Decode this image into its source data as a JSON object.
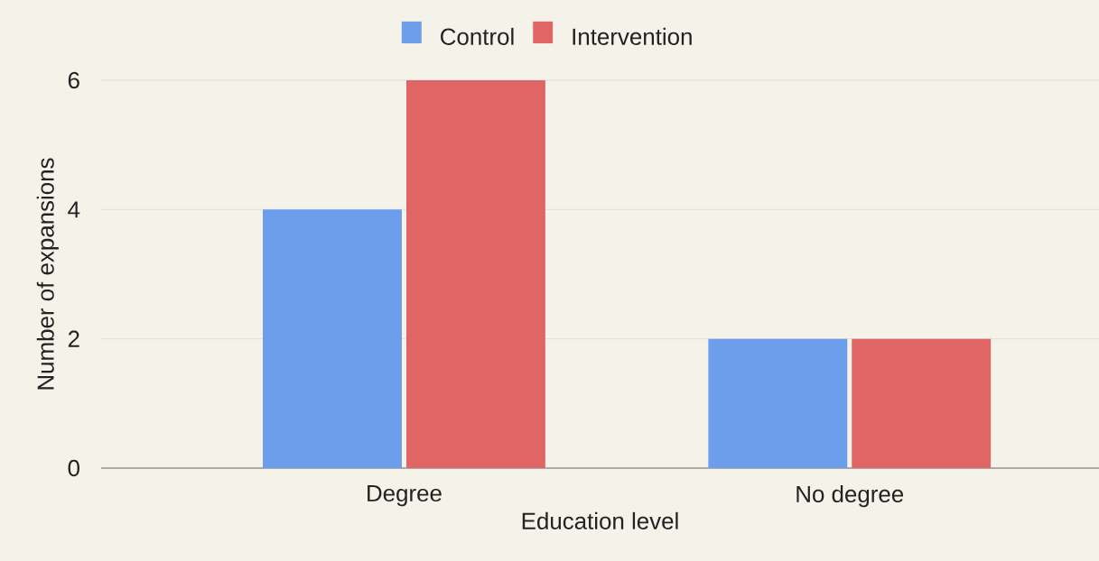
{
  "chart_data": {
    "type": "bar",
    "xlabel": "Education level",
    "ylabel": "Number of expansions",
    "categories": [
      "Degree",
      "No degree"
    ],
    "series": [
      {
        "name": "Control",
        "color": "#6d9eeb",
        "values": [
          4,
          2
        ]
      },
      {
        "name": "Intervention",
        "color": "#e06666",
        "values": [
          6,
          2
        ]
      }
    ],
    "ylim": [
      0,
      6
    ],
    "yticks": [
      0,
      2,
      4,
      6
    ],
    "grid": "y",
    "legend": "top"
  }
}
